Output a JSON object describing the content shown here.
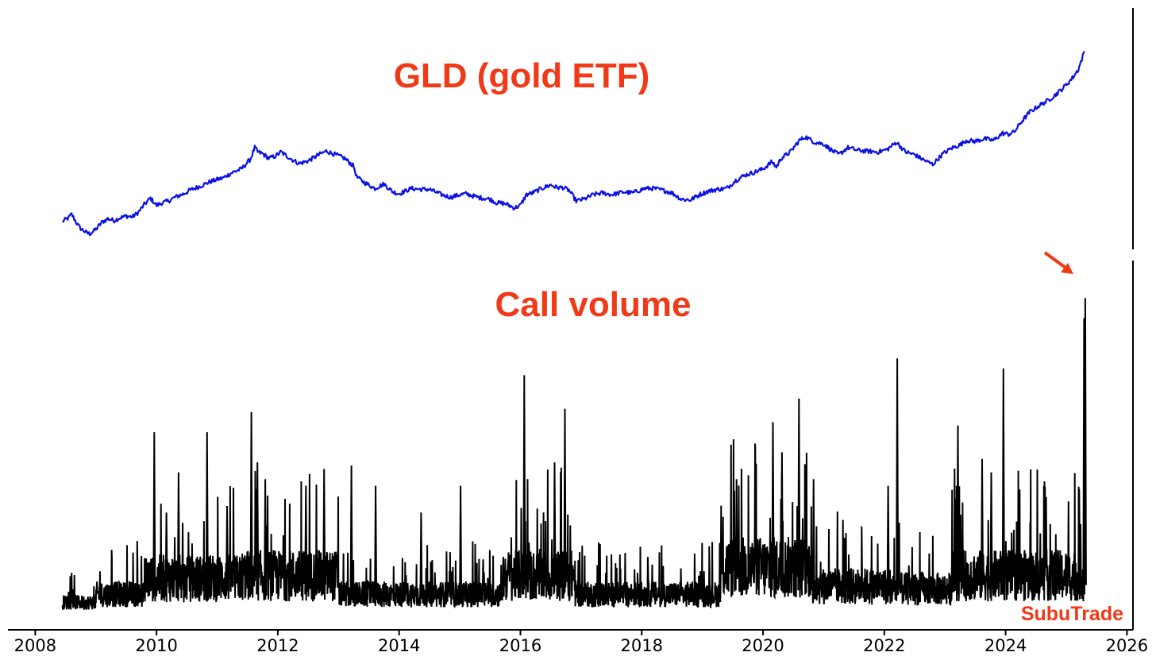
{
  "colors": {
    "gld_line": "#0a10e6",
    "call_line": "#000000",
    "accent": "#f03a17",
    "axis": "#000000"
  },
  "watermark": "SubuTrade",
  "chart_data": [
    {
      "type": "line",
      "title": "GLD (gold ETF)",
      "xlabel": "",
      "ylabel": "",
      "y_axis_labels_shown": false,
      "grid": false,
      "xlim": [
        2007.55,
        2026.1
      ],
      "ylim": [
        70,
        320
      ],
      "series": [
        {
          "x": [
            2008.45,
            2008.55,
            2008.6,
            2008.7,
            2008.75,
            2008.85,
            2008.9,
            2009.0,
            2009.1,
            2009.2,
            2009.3,
            2009.4,
            2009.5,
            2009.6,
            2009.7,
            2009.8,
            2009.9,
            2010.0,
            2010.1,
            2010.2,
            2010.3,
            2010.45,
            2010.55,
            2010.7,
            2010.9,
            2011.1,
            2011.25,
            2011.4,
            2011.55,
            2011.62,
            2011.67,
            2011.75,
            2011.85,
            2011.95,
            2012.05,
            2012.2,
            2012.35,
            2012.5,
            2012.65,
            2012.8,
            2012.95,
            2013.1,
            2013.25,
            2013.3,
            2013.42,
            2013.5,
            2013.6,
            2013.75,
            2013.9,
            2014.0,
            2014.2,
            2014.35,
            2014.5,
            2014.7,
            2014.85,
            2015.0,
            2015.1,
            2015.3,
            2015.5,
            2015.6,
            2015.75,
            2015.9,
            2016.0,
            2016.1,
            2016.2,
            2016.35,
            2016.5,
            2016.6,
            2016.7,
            2016.8,
            2016.92,
            2017.05,
            2017.2,
            2017.35,
            2017.5,
            2017.7,
            2017.85,
            2018.05,
            2018.2,
            2018.35,
            2018.5,
            2018.65,
            2018.8,
            2018.95,
            2019.1,
            2019.25,
            2019.4,
            2019.55,
            2019.7,
            2019.85,
            2020.0,
            2020.15,
            2020.22,
            2020.3,
            2020.45,
            2020.6,
            2020.7,
            2020.85,
            2021.0,
            2021.15,
            2021.25,
            2021.4,
            2021.55,
            2021.7,
            2021.9,
            2022.05,
            2022.2,
            2022.35,
            2022.5,
            2022.65,
            2022.8,
            2022.95,
            2023.1,
            2023.25,
            2023.35,
            2023.5,
            2023.65,
            2023.8,
            2023.95,
            2024.05,
            2024.15,
            2024.25,
            2024.4,
            2024.55,
            2024.7,
            2024.8,
            2024.95,
            2025.1,
            2025.2,
            2025.3
          ],
          "y": [
            89,
            93,
            97,
            85,
            81,
            76,
            75,
            80,
            88,
            92,
            90,
            93,
            95,
            94,
            99,
            108,
            115,
            107,
            110,
            112,
            116,
            120,
            124,
            128,
            134,
            138,
            144,
            148,
            159,
            172,
            167,
            165,
            160,
            162,
            167,
            160,
            154,
            157,
            163,
            168,
            164,
            160,
            151,
            139,
            133,
            130,
            126,
            131,
            122,
            120,
            126,
            125,
            125,
            119,
            116,
            119,
            120,
            116,
            114,
            110,
            109,
            104,
            107,
            119,
            121,
            126,
            130,
            127,
            127,
            124,
            112,
            114,
            119,
            121,
            119,
            122,
            121,
            126,
            126,
            124,
            121,
            114,
            113,
            119,
            123,
            125,
            126,
            135,
            141,
            144,
            148,
            156,
            150,
            160,
            167,
            180,
            184,
            178,
            176,
            168,
            164,
            172,
            169,
            168,
            167,
            170,
            178,
            167,
            164,
            158,
            153,
            164,
            171,
            175,
            180,
            179,
            182,
            180,
            188,
            187,
            190,
            200,
            212,
            219,
            225,
            230,
            239,
            250,
            260,
            280
          ]
        }
      ]
    },
    {
      "type": "line",
      "title": "Call volume",
      "xlabel": "",
      "ylabel": "",
      "y_axis_labels_shown": false,
      "grid": false,
      "xlim": [
        2007.55,
        2026.1
      ],
      "ylim": [
        0,
        100
      ],
      "x_ticks": [
        "2008",
        "2010",
        "2012",
        "2014",
        "2016",
        "2018",
        "2020",
        "2022",
        "2024",
        "2026"
      ],
      "annotation": "arrow pointing to latest spike",
      "series": [
        {
          "baseline_segments": [
            {
              "from": 2008.45,
              "to": 2009.0,
              "level": 4
            },
            {
              "from": 2009.0,
              "to": 2009.8,
              "level": 7
            },
            {
              "from": 2009.8,
              "to": 2011.4,
              "level": 13
            },
            {
              "from": 2011.4,
              "to": 2013.0,
              "level": 14
            },
            {
              "from": 2013.0,
              "to": 2015.7,
              "level": 7
            },
            {
              "from": 2015.7,
              "to": 2016.9,
              "level": 14
            },
            {
              "from": 2016.9,
              "to": 2019.3,
              "level": 7
            },
            {
              "from": 2019.3,
              "to": 2020.8,
              "level": 17
            },
            {
              "from": 2020.8,
              "to": 2022.1,
              "level": 10
            },
            {
              "from": 2022.1,
              "to": 2023.1,
              "level": 9
            },
            {
              "from": 2023.1,
              "to": 2025.3,
              "level": 14
            }
          ],
          "spikes": [
            {
              "x": 2009.95,
              "y": 54
            },
            {
              "x": 2010.35,
              "y": 42
            },
            {
              "x": 2010.82,
              "y": 54
            },
            {
              "x": 2010.15,
              "y": 30
            },
            {
              "x": 2011.15,
              "y": 32
            },
            {
              "x": 2011.55,
              "y": 60
            },
            {
              "x": 2011.65,
              "y": 45
            },
            {
              "x": 2011.78,
              "y": 40
            },
            {
              "x": 2012.45,
              "y": 38
            },
            {
              "x": 2012.75,
              "y": 43
            },
            {
              "x": 2013.2,
              "y": 44
            },
            {
              "x": 2013.6,
              "y": 38
            },
            {
              "x": 2014.35,
              "y": 30
            },
            {
              "x": 2015.0,
              "y": 38
            },
            {
              "x": 2016.05,
              "y": 71
            },
            {
              "x": 2016.55,
              "y": 45
            },
            {
              "x": 2016.72,
              "y": 61
            },
            {
              "x": 2019.55,
              "y": 40
            },
            {
              "x": 2020.15,
              "y": 57
            },
            {
              "x": 2020.3,
              "y": 48
            },
            {
              "x": 2020.58,
              "y": 64
            },
            {
              "x": 2020.82,
              "y": 40
            },
            {
              "x": 2022.2,
              "y": 76
            },
            {
              "x": 2022.05,
              "y": 38
            },
            {
              "x": 2023.2,
              "y": 56
            },
            {
              "x": 2023.6,
              "y": 46
            },
            {
              "x": 2023.95,
              "y": 73
            },
            {
              "x": 2023.75,
              "y": 42
            },
            {
              "x": 2025.2,
              "y": 37
            },
            {
              "x": 2025.3,
              "y": 94
            },
            {
              "x": 2025.28,
              "y": 88
            }
          ]
        }
      ]
    }
  ]
}
